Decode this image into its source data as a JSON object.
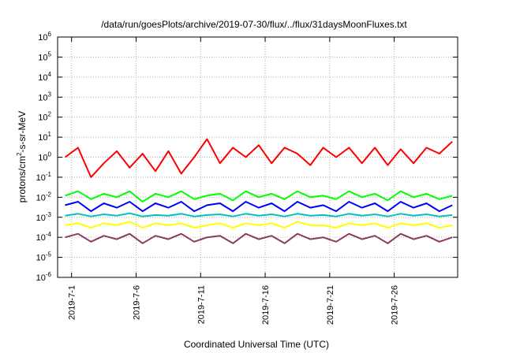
{
  "chart_data": {
    "type": "line",
    "title": "/data/run/goesPlots/archive/2019-07-30/flux/../flux/31daysMoonFluxes.txt",
    "xlabel": "Coordinated Universal Time (UTC)",
    "ylabel": "protons/cm2-s-sr-MeV",
    "ylabel_parts": {
      "base": "protons/cm",
      "sup": "2",
      "rest": "-s-sr-MeV"
    },
    "yscale": "log",
    "ylim": [
      1e-06,
      1000000.0
    ],
    "y_ticks": [
      {
        "base": "10",
        "exp": "-6"
      },
      {
        "base": "10",
        "exp": "-5"
      },
      {
        "base": "10",
        "exp": "-4"
      },
      {
        "base": "10",
        "exp": "-3"
      },
      {
        "base": "10",
        "exp": "-2"
      },
      {
        "base": "10",
        "exp": "-1"
      },
      {
        "base": "10",
        "exp": "0"
      },
      {
        "base": "10",
        "exp": "1"
      },
      {
        "base": "10",
        "exp": "2"
      },
      {
        "base": "10",
        "exp": "3"
      },
      {
        "base": "10",
        "exp": "4"
      },
      {
        "base": "10",
        "exp": "5"
      },
      {
        "base": "10",
        "exp": "6"
      }
    ],
    "xlim": [
      "2019-06-29T22:00",
      "2019-07-30T22:00"
    ],
    "x_ticks": [
      {
        "label": "2019-7-1",
        "date": "2019-07-01"
      },
      {
        "label": "2019-7-6",
        "date": "2019-07-06"
      },
      {
        "label": "2019-7-11",
        "date": "2019-07-11"
      },
      {
        "label": "2019-7-16",
        "date": "2019-07-16"
      },
      {
        "label": "2019-7-21",
        "date": "2019-07-21"
      },
      {
        "label": "2019-7-26",
        "date": "2019-07-26"
      }
    ],
    "grid": true,
    "series": [
      {
        "color": "#ff0000",
        "x": [
          "2019-06-30",
          "2019-07-01",
          "2019-07-02",
          "2019-07-03",
          "2019-07-04",
          "2019-07-05",
          "2019-07-06",
          "2019-07-07",
          "2019-07-08",
          "2019-07-09",
          "2019-07-10",
          "2019-07-11",
          "2019-07-12",
          "2019-07-13",
          "2019-07-14",
          "2019-07-15",
          "2019-07-16",
          "2019-07-17",
          "2019-07-18",
          "2019-07-19",
          "2019-07-20",
          "2019-07-21",
          "2019-07-22",
          "2019-07-23",
          "2019-07-24",
          "2019-07-25",
          "2019-07-26",
          "2019-07-27",
          "2019-07-28",
          "2019-07-29",
          "2019-07-30"
        ],
        "values": [
          1.0,
          3.0,
          0.1,
          0.5,
          2.0,
          0.3,
          1.5,
          0.2,
          2.0,
          0.15,
          1.0,
          8.0,
          0.5,
          3.0,
          1.0,
          4.0,
          0.5,
          3.0,
          1.5,
          0.4,
          3.0,
          1.0,
          3.0,
          0.5,
          3.0,
          0.4,
          2.5,
          0.5,
          3.0,
          1.5,
          6.0
        ]
      },
      {
        "color": "#00ff00",
        "x": [
          "2019-06-30",
          "2019-07-01",
          "2019-07-02",
          "2019-07-03",
          "2019-07-04",
          "2019-07-05",
          "2019-07-06",
          "2019-07-07",
          "2019-07-08",
          "2019-07-09",
          "2019-07-10",
          "2019-07-11",
          "2019-07-12",
          "2019-07-13",
          "2019-07-14",
          "2019-07-15",
          "2019-07-16",
          "2019-07-17",
          "2019-07-18",
          "2019-07-19",
          "2019-07-20",
          "2019-07-21",
          "2019-07-22",
          "2019-07-23",
          "2019-07-24",
          "2019-07-25",
          "2019-07-26",
          "2019-07-27",
          "2019-07-28",
          "2019-07-29",
          "2019-07-30"
        ],
        "values": [
          0.012,
          0.02,
          0.008,
          0.015,
          0.01,
          0.02,
          0.006,
          0.015,
          0.01,
          0.02,
          0.008,
          0.012,
          0.015,
          0.007,
          0.02,
          0.01,
          0.015,
          0.008,
          0.02,
          0.01,
          0.012,
          0.008,
          0.02,
          0.01,
          0.015,
          0.007,
          0.02,
          0.01,
          0.015,
          0.008,
          0.012
        ]
      },
      {
        "color": "#0000ff",
        "x": [
          "2019-06-30",
          "2019-07-01",
          "2019-07-02",
          "2019-07-03",
          "2019-07-04",
          "2019-07-05",
          "2019-07-06",
          "2019-07-07",
          "2019-07-08",
          "2019-07-09",
          "2019-07-10",
          "2019-07-11",
          "2019-07-12",
          "2019-07-13",
          "2019-07-14",
          "2019-07-15",
          "2019-07-16",
          "2019-07-17",
          "2019-07-18",
          "2019-07-19",
          "2019-07-20",
          "2019-07-21",
          "2019-07-22",
          "2019-07-23",
          "2019-07-24",
          "2019-07-25",
          "2019-07-26",
          "2019-07-27",
          "2019-07-28",
          "2019-07-29",
          "2019-07-30"
        ],
        "values": [
          0.004,
          0.006,
          0.002,
          0.005,
          0.003,
          0.006,
          0.002,
          0.005,
          0.003,
          0.006,
          0.002,
          0.004,
          0.005,
          0.002,
          0.006,
          0.003,
          0.005,
          0.002,
          0.006,
          0.003,
          0.004,
          0.002,
          0.006,
          0.003,
          0.005,
          0.002,
          0.006,
          0.003,
          0.005,
          0.002,
          0.004
        ]
      },
      {
        "color": "#00c0c0",
        "x": [
          "2019-06-30",
          "2019-07-01",
          "2019-07-02",
          "2019-07-03",
          "2019-07-04",
          "2019-07-05",
          "2019-07-06",
          "2019-07-07",
          "2019-07-08",
          "2019-07-09",
          "2019-07-10",
          "2019-07-11",
          "2019-07-12",
          "2019-07-13",
          "2019-07-14",
          "2019-07-15",
          "2019-07-16",
          "2019-07-17",
          "2019-07-18",
          "2019-07-19",
          "2019-07-20",
          "2019-07-21",
          "2019-07-22",
          "2019-07-23",
          "2019-07-24",
          "2019-07-25",
          "2019-07-26",
          "2019-07-27",
          "2019-07-28",
          "2019-07-29",
          "2019-07-30"
        ],
        "values": [
          0.0012,
          0.0015,
          0.0011,
          0.0014,
          0.0012,
          0.0016,
          0.0011,
          0.0013,
          0.0012,
          0.0015,
          0.0011,
          0.0013,
          0.0014,
          0.0011,
          0.0015,
          0.0012,
          0.0014,
          0.0011,
          0.0015,
          0.0012,
          0.0013,
          0.0011,
          0.0015,
          0.0012,
          0.0014,
          0.0011,
          0.0015,
          0.0012,
          0.0014,
          0.0011,
          0.0013
        ]
      },
      {
        "color": "#ffff00",
        "x": [
          "2019-06-30",
          "2019-07-01",
          "2019-07-02",
          "2019-07-03",
          "2019-07-04",
          "2019-07-05",
          "2019-07-06",
          "2019-07-07",
          "2019-07-08",
          "2019-07-09",
          "2019-07-10",
          "2019-07-11",
          "2019-07-12",
          "2019-07-13",
          "2019-07-14",
          "2019-07-15",
          "2019-07-16",
          "2019-07-17",
          "2019-07-18",
          "2019-07-19",
          "2019-07-20",
          "2019-07-21",
          "2019-07-22",
          "2019-07-23",
          "2019-07-24",
          "2019-07-25",
          "2019-07-26",
          "2019-07-27",
          "2019-07-28",
          "2019-07-29",
          "2019-07-30"
        ],
        "values": [
          0.0004,
          0.0005,
          0.0003,
          0.0005,
          0.0004,
          0.0006,
          0.0003,
          0.0005,
          0.0004,
          0.0005,
          0.0003,
          0.0004,
          0.0005,
          0.0003,
          0.0005,
          0.0004,
          0.0005,
          0.0003,
          0.0006,
          0.0004,
          0.0004,
          0.0003,
          0.0005,
          0.0004,
          0.0005,
          0.0003,
          0.0005,
          0.0004,
          0.0005,
          0.0003,
          0.0004
        ]
      },
      {
        "color": "#8b3a62",
        "x": [
          "2019-06-30",
          "2019-07-01",
          "2019-07-02",
          "2019-07-03",
          "2019-07-04",
          "2019-07-05",
          "2019-07-06",
          "2019-07-07",
          "2019-07-08",
          "2019-07-09",
          "2019-07-10",
          "2019-07-11",
          "2019-07-12",
          "2019-07-13",
          "2019-07-14",
          "2019-07-15",
          "2019-07-16",
          "2019-07-17",
          "2019-07-18",
          "2019-07-19",
          "2019-07-20",
          "2019-07-21",
          "2019-07-22",
          "2019-07-23",
          "2019-07-24",
          "2019-07-25",
          "2019-07-26",
          "2019-07-27",
          "2019-07-28",
          "2019-07-29",
          "2019-07-30"
        ],
        "values": [
          0.0001,
          0.00015,
          6e-05,
          0.00012,
          8e-05,
          0.00015,
          5e-05,
          0.00012,
          8e-05,
          0.00015,
          6e-05,
          0.0001,
          0.00012,
          5e-05,
          0.00015,
          8e-05,
          0.00012,
          5e-05,
          0.00015,
          8e-05,
          0.0001,
          6e-05,
          0.00015,
          8e-05,
          0.00012,
          5e-05,
          0.00015,
          8e-05,
          0.00012,
          6e-05,
          0.0001
        ]
      }
    ]
  }
}
